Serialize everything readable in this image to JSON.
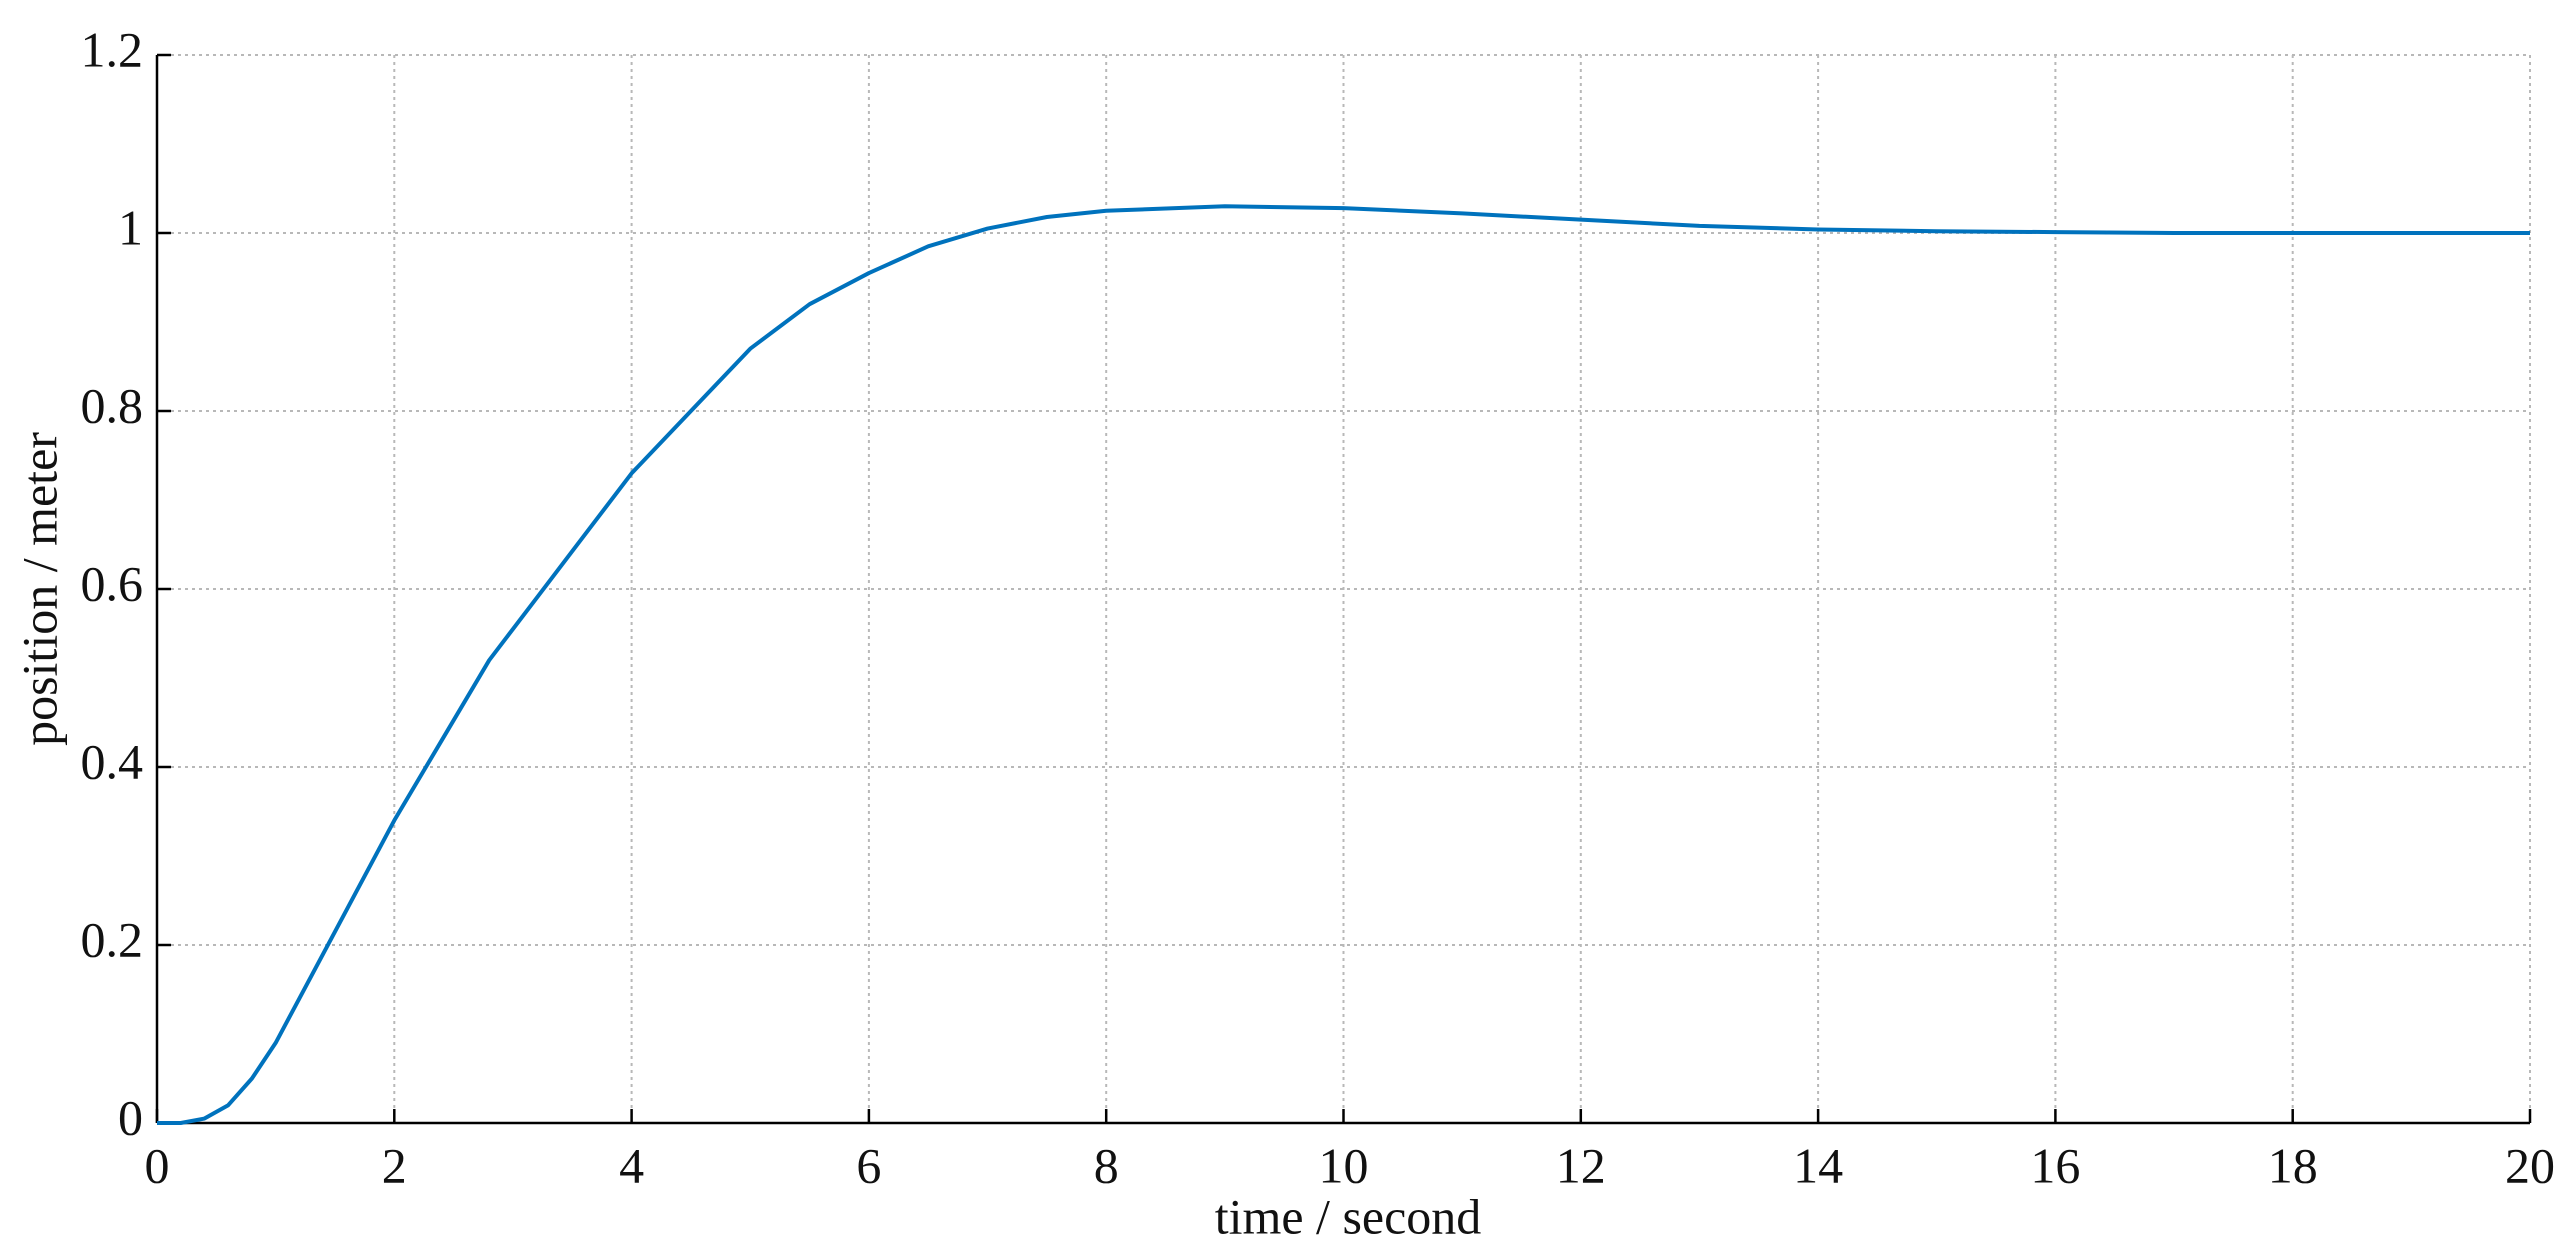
{
  "chart_data": {
    "type": "line",
    "xlabel": "time / second",
    "ylabel": "position / meter",
    "x": [
      0,
      0.2,
      0.4,
      0.6,
      0.8,
      1.0,
      1.2,
      1.4,
      1.6,
      1.8,
      2.0,
      2.4,
      2.8,
      3.2,
      3.6,
      4.0,
      4.5,
      5.0,
      5.5,
      6.0,
      6.5,
      7.0,
      7.5,
      8.0,
      9.0,
      10,
      11,
      12,
      13,
      14,
      15,
      16,
      17,
      18,
      20
    ],
    "series": [
      {
        "color": "#0072bd",
        "values": [
          0,
          0,
          0.005,
          0.02,
          0.05,
          0.09,
          0.14,
          0.19,
          0.24,
          0.29,
          0.34,
          0.43,
          0.52,
          0.59,
          0.66,
          0.73,
          0.8,
          0.87,
          0.92,
          0.955,
          0.985,
          1.005,
          1.018,
          1.025,
          1.03,
          1.028,
          1.022,
          1.015,
          1.008,
          1.004,
          1.002,
          1.001,
          1.0,
          1.0,
          1.0
        ]
      }
    ],
    "xlim": [
      0,
      20
    ],
    "ylim": [
      0,
      1.2
    ],
    "xticks": [
      0,
      2,
      4,
      6,
      8,
      10,
      12,
      14,
      16,
      18,
      20
    ],
    "yticks": [
      0,
      0.2,
      0.4,
      0.6,
      0.8,
      1,
      1.2
    ],
    "grid": true
  }
}
